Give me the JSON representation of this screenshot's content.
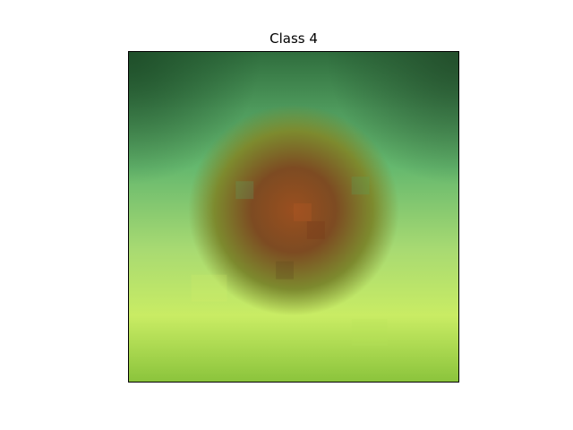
{
  "figure": {
    "title": "Class 4"
  },
  "image": {
    "description": "",
    "colors": {
      "dark_green": "#2f6d3d",
      "mid_green": "#63b36a",
      "light_green": "#a9d96b",
      "yellow_green": "#c9ec64",
      "brown": "#7d4b22",
      "rust": "#9a4f1f",
      "olive": "#7d8a2e"
    }
  }
}
